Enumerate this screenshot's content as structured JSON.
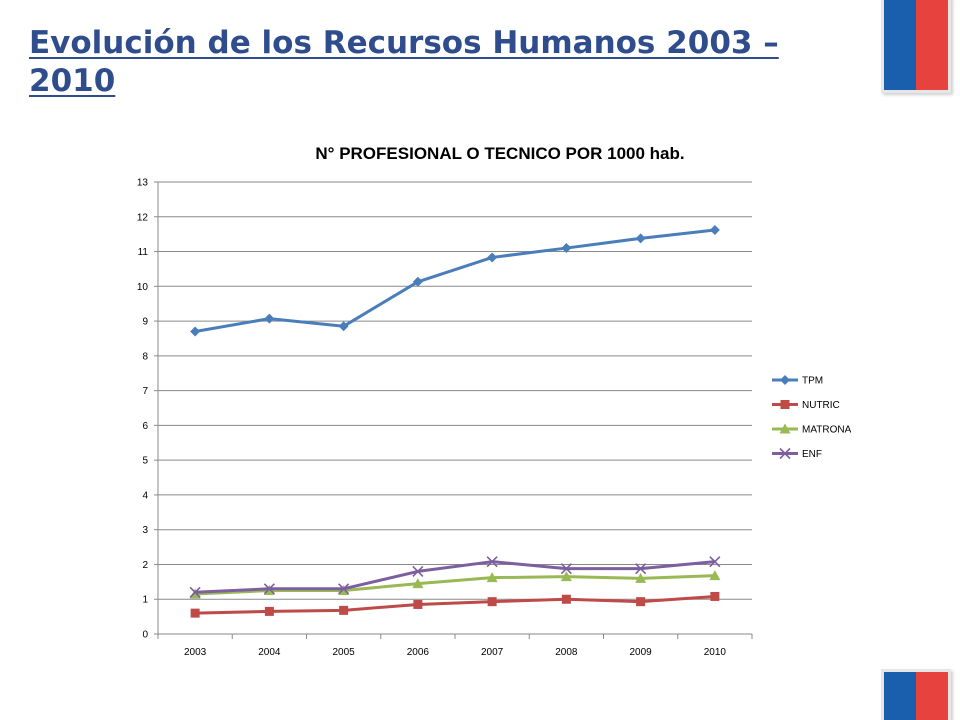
{
  "slide": {
    "title": "Evolución de los Recursos Humanos  2003 – 2010"
  },
  "colors": {
    "title": "#2f4d8c",
    "flag_blue": "#1a5fad",
    "flag_red": "#e8423f"
  },
  "chart_data": {
    "type": "line",
    "title": "N° PROFESIONAL O TECNICO POR 1000 hab.",
    "xlabel": "",
    "ylabel": "",
    "categories": [
      "2003",
      "2004",
      "2005",
      "2006",
      "2007",
      "2008",
      "2009",
      "2010"
    ],
    "ylim": [
      0,
      13
    ],
    "yticks": [
      0,
      1,
      2,
      3,
      4,
      5,
      6,
      7,
      8,
      9,
      10,
      11,
      12,
      13
    ],
    "grid": "horizontal",
    "legend_position": "right",
    "series": [
      {
        "name": "TPM",
        "color": "#4a7ebb",
        "marker": "diamond",
        "values": [
          8.7,
          9.07,
          8.85,
          10.13,
          10.83,
          11.1,
          11.38,
          11.62
        ]
      },
      {
        "name": "NUTRIC",
        "color": "#be4b48",
        "marker": "square",
        "values": [
          0.6,
          0.65,
          0.68,
          0.85,
          0.93,
          1.0,
          0.93,
          1.08
        ]
      },
      {
        "name": "MATRONA",
        "color": "#98b954",
        "marker": "triangle",
        "values": [
          1.15,
          1.25,
          1.25,
          1.45,
          1.62,
          1.65,
          1.6,
          1.68
        ]
      },
      {
        "name": "ENF",
        "color": "#7d5fa0",
        "marker": "x",
        "values": [
          1.2,
          1.3,
          1.3,
          1.8,
          2.08,
          1.88,
          1.88,
          2.08
        ]
      }
    ]
  }
}
